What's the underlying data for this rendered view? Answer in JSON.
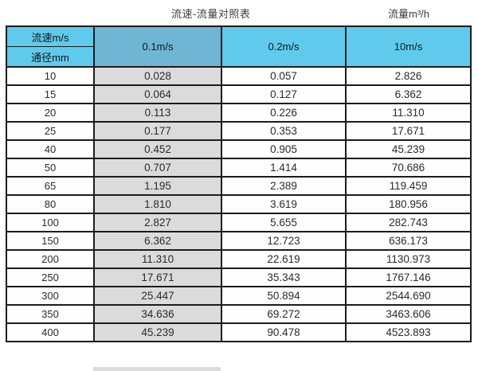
{
  "header": {
    "title": "流速-流量对照表",
    "unit_label": "流量m³/h"
  },
  "table": {
    "corner_top": "流速m/s",
    "corner_bottom": "通径mm",
    "columns": [
      "0.1m/s",
      "0.2m/s",
      "10m/s"
    ],
    "rows": [
      {
        "diameter": "10",
        "values": [
          "0.028",
          "0.057",
          "2.826"
        ]
      },
      {
        "diameter": "15",
        "values": [
          "0.064",
          "0.127",
          "6.362"
        ]
      },
      {
        "diameter": "20",
        "values": [
          "0.113",
          "0.226",
          "11.310"
        ]
      },
      {
        "diameter": "25",
        "values": [
          "0.177",
          "0.353",
          "17.671"
        ]
      },
      {
        "diameter": "40",
        "values": [
          "0.452",
          "0.905",
          "45.239"
        ]
      },
      {
        "diameter": "50",
        "values": [
          "0.707",
          "1.414",
          "70.686"
        ]
      },
      {
        "diameter": "65",
        "values": [
          "1.195",
          "2.389",
          "119.459"
        ]
      },
      {
        "diameter": "80",
        "values": [
          "1.810",
          "3.619",
          "180.956"
        ]
      },
      {
        "diameter": "100",
        "values": [
          "2.827",
          "5.655",
          "282.743"
        ]
      },
      {
        "diameter": "150",
        "values": [
          "6.362",
          "12.723",
          "636.173"
        ]
      },
      {
        "diameter": "200",
        "values": [
          "11.310",
          "22.619",
          "1130.973"
        ]
      },
      {
        "diameter": "250",
        "values": [
          "17.671",
          "35.343",
          "1767.146"
        ]
      },
      {
        "diameter": "300",
        "values": [
          "25.447",
          "50.894",
          "2544.690"
        ]
      },
      {
        "diameter": "350",
        "values": [
          "34.636",
          "69.272",
          "3463.606"
        ]
      },
      {
        "diameter": "400",
        "values": [
          "45.239",
          "90.478",
          "4523.893"
        ]
      }
    ]
  },
  "colors": {
    "header_blue": "#60caec",
    "selected_blue": "#6fb5d4",
    "selected_gray": "#dbdbdb",
    "border": "#1c1c1c"
  },
  "chart_data": {
    "type": "table",
    "title": "流速-流量对照表",
    "units_note": "流量m³/h",
    "row_header_label": "通径mm",
    "col_header_label": "流速m/s",
    "columns": [
      "0.1m/s",
      "0.2m/s",
      "10m/s"
    ],
    "diameters_mm": [
      10,
      15,
      20,
      25,
      40,
      50,
      65,
      80,
      100,
      150,
      200,
      250,
      300,
      350,
      400
    ],
    "flow_rates_m3h": [
      [
        0.028,
        0.057,
        2.826
      ],
      [
        0.064,
        0.127,
        6.362
      ],
      [
        0.113,
        0.226,
        11.31
      ],
      [
        0.177,
        0.353,
        17.671
      ],
      [
        0.452,
        0.905,
        45.239
      ],
      [
        0.707,
        1.414,
        70.686
      ],
      [
        1.195,
        2.389,
        119.459
      ],
      [
        1.81,
        3.619,
        180.956
      ],
      [
        2.827,
        5.655,
        282.743
      ],
      [
        6.362,
        12.723,
        636.173
      ],
      [
        11.31,
        22.619,
        1130.973
      ],
      [
        17.671,
        35.343,
        1767.146
      ],
      [
        25.447,
        50.894,
        2544.69
      ],
      [
        34.636,
        69.272,
        3463.606
      ],
      [
        45.239,
        90.478,
        4523.893
      ]
    ],
    "highlighted_column": "0.1m/s",
    "layout": {
      "grid": true,
      "header_fill": "#60caec",
      "highlight_fill": "#dbdbdb"
    }
  }
}
